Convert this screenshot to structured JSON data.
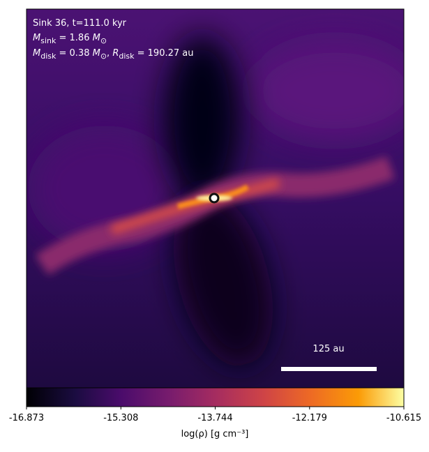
{
  "chart_data": {
    "type": "image",
    "annotations": [
      [
        "Sink 36, t=111.0 kyr"
      ],
      [
        "M",
        "sink",
        " = 1.86 ",
        "M",
        "⊙"
      ],
      [
        "M",
        "disk",
        " = 0.38 ",
        "M",
        "⊙",
        ", ",
        "R",
        "disk",
        " = 190.27 au"
      ]
    ],
    "scale_bar_label": "125 au",
    "colorbar": {
      "label": "log(ρ) [g cm⁻³]",
      "xlim": [
        -16.873,
        -10.615
      ],
      "xticks": [
        -16.873,
        -15.308,
        -13.744,
        -12.179,
        -10.615
      ]
    }
  }
}
